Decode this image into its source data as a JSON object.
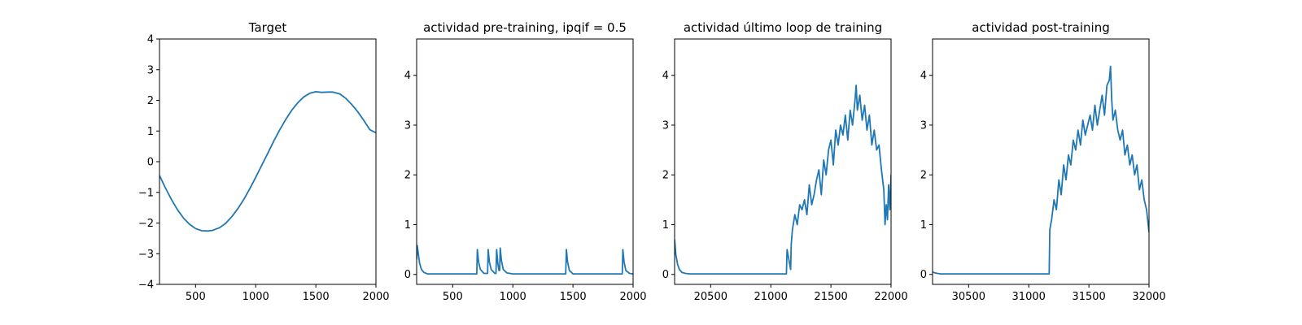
{
  "chart_data": [
    {
      "type": "line",
      "title": "Target",
      "xlabel": "",
      "ylabel": "",
      "xlim": [
        200,
        2000
      ],
      "ylim": [
        -4,
        4
      ],
      "xticks": [
        500,
        1000,
        1500,
        2000
      ],
      "yticks": [
        -4,
        -3,
        -2,
        -1,
        0,
        1,
        2,
        3,
        4
      ],
      "grid": false,
      "color": "#1f77b4",
      "series": [
        {
          "x": [
            200,
            250,
            300,
            350,
            400,
            450,
            500,
            550,
            600,
            640,
            700,
            750,
            800,
            850,
            900,
            950,
            1000,
            1050,
            1100,
            1150,
            1200,
            1250,
            1300,
            1350,
            1400,
            1450,
            1500,
            1550,
            1600,
            1640,
            1700,
            1750,
            1800,
            1850,
            1900,
            1950,
            2000
          ],
          "y": [
            -0.45,
            -0.86,
            -1.24,
            -1.57,
            -1.84,
            -2.04,
            -2.18,
            -2.25,
            -2.26,
            -2.24,
            -2.15,
            -2.01,
            -1.8,
            -1.54,
            -1.24,
            -0.89,
            -0.51,
            -0.12,
            0.27,
            0.67,
            1.04,
            1.38,
            1.68,
            1.92,
            2.11,
            2.23,
            2.28,
            2.26,
            2.27,
            2.27,
            2.21,
            2.06,
            1.86,
            1.62,
            1.34,
            1.04,
            0.94
          ]
        }
      ]
    },
    {
      "type": "line",
      "title": "actividad pre-training, ipqif = 0.5",
      "xlabel": "",
      "ylabel": "",
      "xlim": [
        200,
        2000
      ],
      "ylim": [
        -0.2,
        4.73
      ],
      "xticks": [
        500,
        1000,
        1500,
        2000
      ],
      "yticks": [
        0,
        1,
        2,
        3,
        4
      ],
      "grid": false,
      "color": "#1f77b4",
      "series": [
        {
          "x": [
            200,
            205,
            215,
            225,
            240,
            260,
            290,
            700,
            705,
            715,
            730,
            760,
            790,
            795,
            805,
            820,
            850,
            860,
            865,
            875,
            885,
            890,
            895,
            905,
            920,
            950,
            1000,
            1440,
            1445,
            1455,
            1470,
            1500,
            1910,
            1915,
            1925,
            1940,
            1970,
            2000
          ],
          "y": [
            0.3,
            0.58,
            0.4,
            0.22,
            0.1,
            0.04,
            0.01,
            0.01,
            0.5,
            0.25,
            0.1,
            0.02,
            0.02,
            0.5,
            0.25,
            0.1,
            0.02,
            0.02,
            0.5,
            0.22,
            0.08,
            0.08,
            0.53,
            0.28,
            0.1,
            0.03,
            0.01,
            0.01,
            0.5,
            0.25,
            0.08,
            0.01,
            0.01,
            0.5,
            0.25,
            0.08,
            0.02,
            0.01
          ]
        }
      ]
    },
    {
      "type": "line",
      "title": "actividad último loop de training",
      "xlabel": "",
      "ylabel": "",
      "xlim": [
        20200,
        22000
      ],
      "ylim": [
        -0.2,
        4.73
      ],
      "xticks": [
        20500,
        21000,
        21500,
        22000
      ],
      "yticks": [
        0,
        1,
        2,
        3,
        4
      ],
      "grid": false,
      "color": "#1f77b4",
      "series": [
        {
          "x": [
            20200,
            20210,
            20225,
            20240,
            20260,
            20290,
            20330,
            21130,
            21135,
            21150,
            21165,
            21170,
            21180,
            21200,
            21220,
            21240,
            21260,
            21280,
            21300,
            21320,
            21340,
            21360,
            21380,
            21400,
            21420,
            21440,
            21460,
            21480,
            21500,
            21520,
            21540,
            21560,
            21580,
            21600,
            21620,
            21640,
            21660,
            21680,
            21700,
            21710,
            21720,
            21740,
            21760,
            21780,
            21800,
            21820,
            21840,
            21860,
            21880,
            21900,
            21920,
            21940,
            21950,
            21960,
            21970,
            21980,
            21990,
            22000
          ],
          "y": [
            0.7,
            0.4,
            0.2,
            0.1,
            0.04,
            0.02,
            0.01,
            0.01,
            0.5,
            0.3,
            0.1,
            0.6,
            0.9,
            1.2,
            1.0,
            1.4,
            1.3,
            1.5,
            1.2,
            1.8,
            1.4,
            1.6,
            1.9,
            2.1,
            1.6,
            2.3,
            2.0,
            2.5,
            2.7,
            2.2,
            2.9,
            2.6,
            3.0,
            2.8,
            3.2,
            2.7,
            3.3,
            3.0,
            3.5,
            3.8,
            3.3,
            3.6,
            3.1,
            3.4,
            2.9,
            3.2,
            2.6,
            2.9,
            2.5,
            2.6,
            2.1,
            1.7,
            1.0,
            1.4,
            1.1,
            1.8,
            1.3,
            2.0
          ]
        }
      ]
    },
    {
      "type": "line",
      "title": "actividad post-training",
      "xlabel": "",
      "ylabel": "",
      "xlim": [
        30200,
        32000
      ],
      "ylim": [
        -0.2,
        4.73
      ],
      "xticks": [
        30500,
        31000,
        31500,
        32000
      ],
      "yticks": [
        0,
        1,
        2,
        3,
        4
      ],
      "grid": false,
      "color": "#1f77b4",
      "series": [
        {
          "x": [
            30200,
            30220,
            30240,
            30270,
            30300,
            31170,
            31175,
            31190,
            31210,
            31230,
            31250,
            31270,
            31290,
            31310,
            31330,
            31350,
            31370,
            31390,
            31410,
            31430,
            31450,
            31470,
            31490,
            31510,
            31530,
            31550,
            31570,
            31590,
            31610,
            31630,
            31650,
            31670,
            31680,
            31690,
            31700,
            31720,
            31740,
            31760,
            31780,
            31800,
            31820,
            31840,
            31860,
            31880,
            31900,
            31920,
            31940,
            31960,
            31980,
            32000
          ],
          "y": [
            0.05,
            0.03,
            0.02,
            0.01,
            0.01,
            0.01,
            0.9,
            1.1,
            1.5,
            1.3,
            1.9,
            1.6,
            2.2,
            1.9,
            2.4,
            2.2,
            2.7,
            2.5,
            2.9,
            2.6,
            3.1,
            2.8,
            3.0,
            3.2,
            2.9,
            3.4,
            3.0,
            3.3,
            3.6,
            3.2,
            3.8,
            3.9,
            4.18,
            3.5,
            3.1,
            3.3,
            2.9,
            2.7,
            2.9,
            2.4,
            2.6,
            2.2,
            2.4,
            2.0,
            2.2,
            1.7,
            1.9,
            1.5,
            1.3,
            0.85
          ]
        }
      ]
    }
  ]
}
